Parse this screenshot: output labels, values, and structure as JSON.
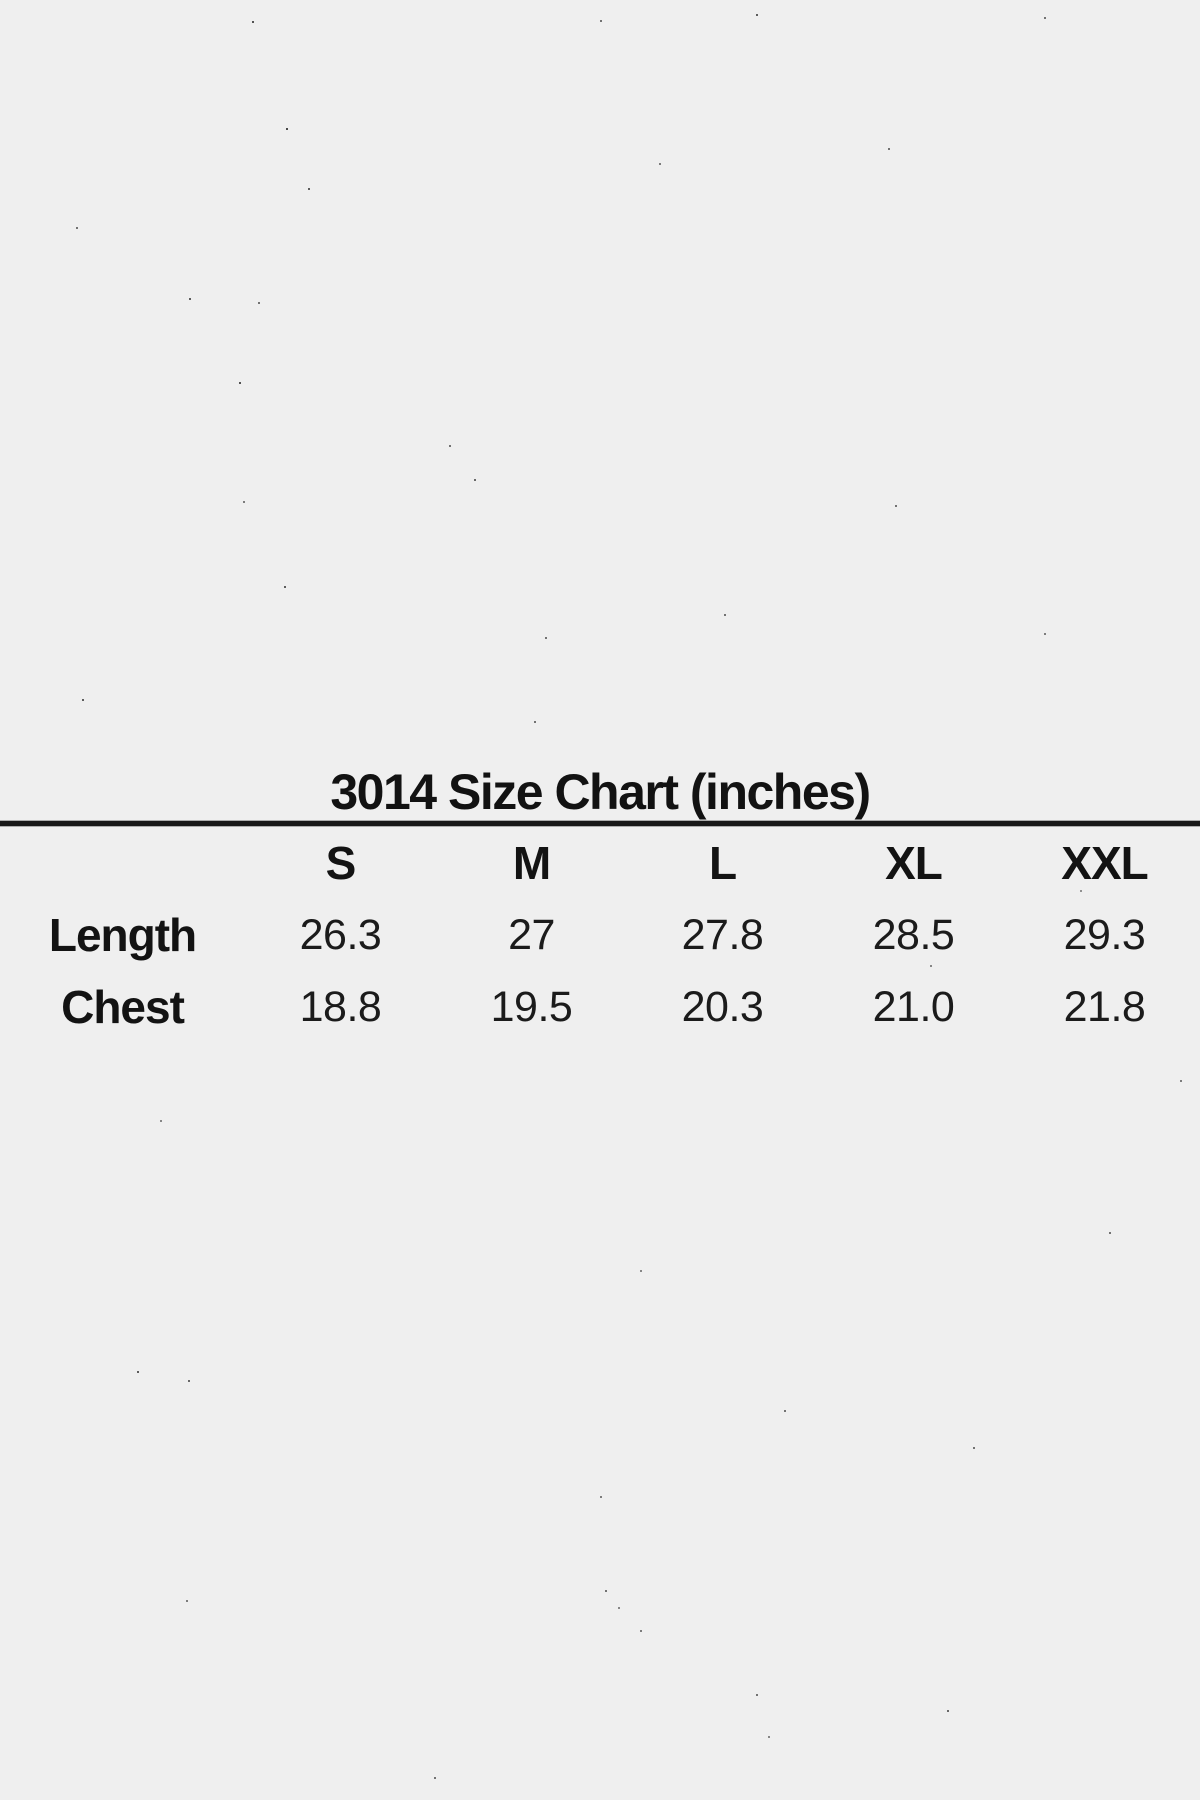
{
  "page": {
    "background_color": "#efefef",
    "text_color": "#131313",
    "divider_color": "#181818"
  },
  "size_chart": {
    "title": "3014 Size Chart (inches)",
    "columns": [
      "S",
      "M",
      "L",
      "XL",
      "XXL"
    ],
    "rows": [
      {
        "label": "Length",
        "values": [
          "26.3",
          "27",
          "27.8",
          "28.5",
          "29.3"
        ]
      },
      {
        "label": "Chest",
        "values": [
          "18.8",
          "19.5",
          "20.3",
          "21.0",
          "21.8"
        ]
      }
    ]
  },
  "chart_data": {
    "type": "table",
    "title": "3014 Size Chart (inches)",
    "units": "inches",
    "columns": [
      "S",
      "M",
      "L",
      "XL",
      "XXL"
    ],
    "rows": [
      {
        "label": "Length",
        "values": [
          26.3,
          27,
          27.8,
          28.5,
          29.3
        ]
      },
      {
        "label": "Chest",
        "values": [
          18.8,
          19.5,
          20.3,
          21.0,
          21.8
        ]
      }
    ]
  }
}
